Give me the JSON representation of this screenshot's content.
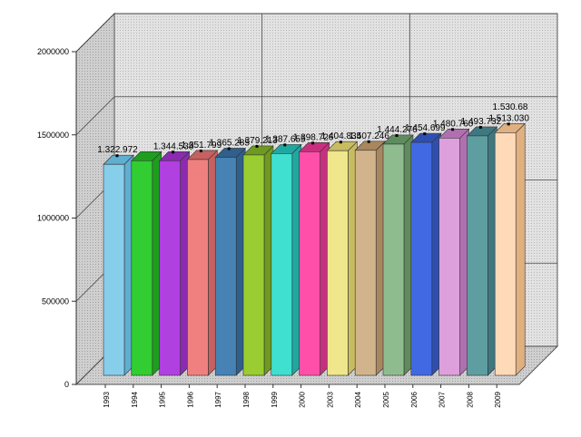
{
  "chart_data": {
    "type": "bar",
    "title": "",
    "xlabel": "",
    "ylabel": "",
    "style": "3d",
    "grid": true,
    "legend": "none",
    "ylim": [
      0,
      2000000
    ],
    "yticks": [
      0,
      500000,
      1000000,
      1500000,
      2000000
    ],
    "ytick_labels": [
      "0",
      "500000",
      "1000000",
      "1500000",
      "2000000"
    ],
    "categories": [
      "1993",
      "1994",
      "1995",
      "1996",
      "1997",
      "1998",
      "1999",
      "2000",
      "2003",
      "2004",
      "2005",
      "2006",
      "2007",
      "2008",
      "2009"
    ],
    "values": [
      1322972,
      1344500,
      1344538,
      1351799,
      1365285,
      1379213,
      1387655,
      1398726,
      1404835,
      1407246,
      1444276,
      1454699,
      1480760,
      1493732,
      1513030
    ],
    "data_labels": [
      "1.322.972",
      "",
      "1.344.538",
      "1.351.799",
      "1.365.285",
      "1.379.213",
      "1.387.655",
      "1.398.726",
      "1.404.835",
      "1.407.246",
      "1.444.276",
      "1.454.699",
      "1.480.760",
      "1.493.732",
      "1.513.030"
    ],
    "extra_label": "1.530.68",
    "colors": [
      "#87CEEB",
      "#32CD32",
      "#B040E0",
      "#F08080",
      "#4682B4",
      "#9ACD32",
      "#40E0D0",
      "#FF4FA8",
      "#F0E68C",
      "#D2B48C",
      "#8FBC8F",
      "#4169E1",
      "#DDA0DD",
      "#5F9EA0",
      "#FFDAB9"
    ],
    "colors_top": [
      "#5FAFD0",
      "#1E9E1E",
      "#8A2BB0",
      "#C86060",
      "#2F5F8A",
      "#6E9A20",
      "#20A8A0",
      "#C8307F",
      "#C8BC60",
      "#A8875F",
      "#5F8C5F",
      "#2F4FB0",
      "#B070B0",
      "#3E7880",
      "#E0B080"
    ]
  }
}
